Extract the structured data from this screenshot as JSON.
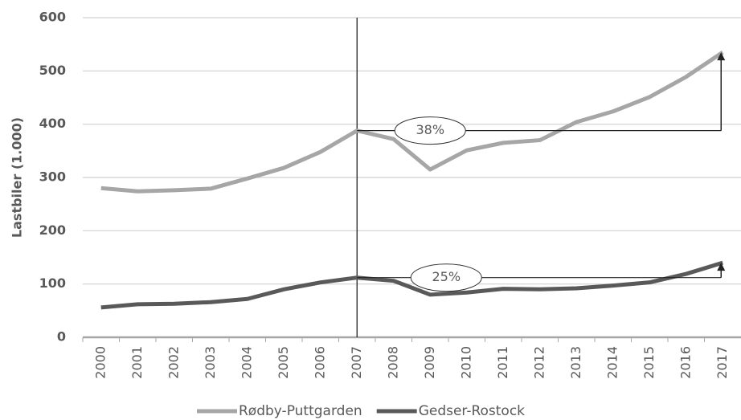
{
  "chart_data": {
    "type": "line",
    "y_label": "Lastbiler (1.000)",
    "categories": [
      "2000",
      "2001",
      "2002",
      "2003",
      "2004",
      "2005",
      "2006",
      "2007",
      "2008",
      "2009",
      "2010",
      "2011",
      "2012",
      "2013",
      "2014",
      "2015",
      "2016",
      "2017"
    ],
    "series": [
      {
        "name": "Rødby-Puttgarden",
        "color": "#a6a6a6",
        "values": [
          280,
          274,
          276,
          279,
          298,
          318,
          348,
          388,
          372,
          315,
          351,
          365,
          370,
          404,
          424,
          451,
          489,
          535
        ]
      },
      {
        "name": "Gedser-Rostock",
        "color": "#595959",
        "values": [
          56,
          62,
          63,
          66,
          72,
          90,
          103,
          112,
          106,
          80,
          84,
          91,
          90,
          92,
          97,
          103,
          119,
          140
        ]
      }
    ],
    "annotations": [
      "38%",
      "25%"
    ],
    "ylim": [
      0,
      600
    ],
    "yticks": [
      0,
      100,
      200,
      300,
      400,
      500,
      600
    ],
    "grid": true
  }
}
